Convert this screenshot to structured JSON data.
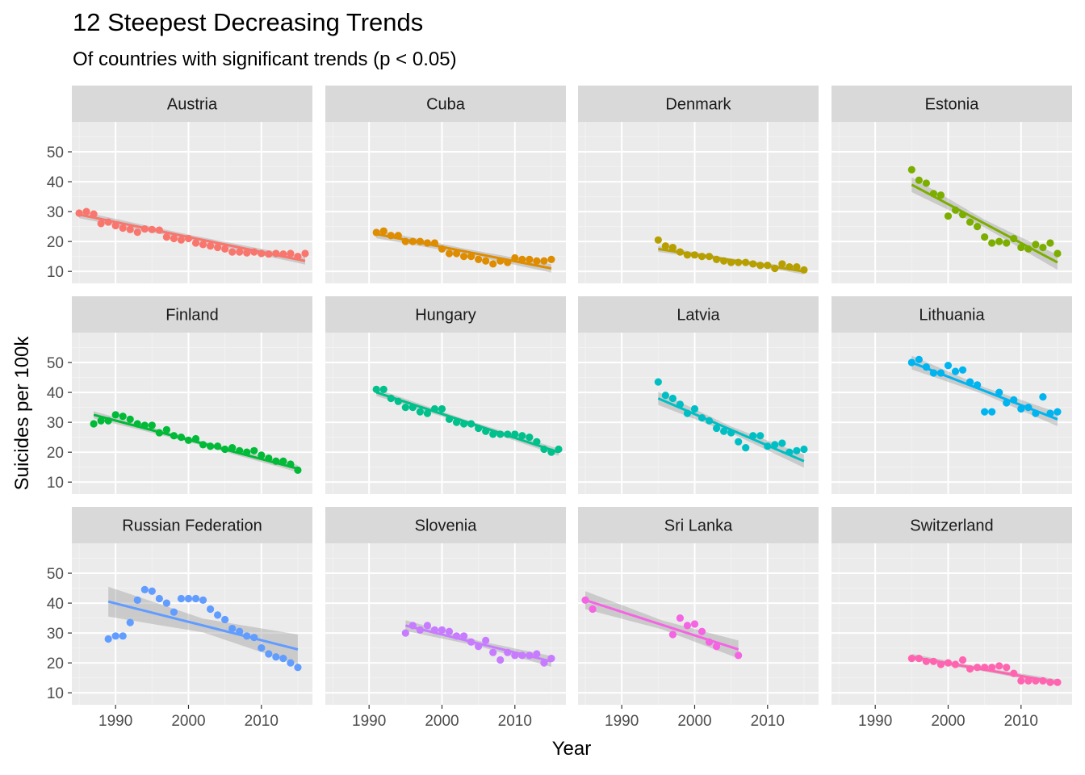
{
  "chart_data": {
    "type": "scatter",
    "title": "12 Steepest Decreasing Trends",
    "subtitle": "Of countries with significant trends (p < 0.05)",
    "xlabel": "Year",
    "ylabel": "Suicides per 100k",
    "xlim": [
      1984,
      2017
    ],
    "ylim": [
      6,
      60
    ],
    "x_ticks": [
      1990,
      2000,
      2010
    ],
    "y_ticks": [
      10,
      20,
      30,
      40,
      50
    ],
    "grid": true,
    "facets": [
      {
        "name": "Austria",
        "color": "#F8766D",
        "x": [
          1985,
          1986,
          1987,
          1988,
          1989,
          1990,
          1991,
          1992,
          1993,
          1994,
          1995,
          1996,
          1997,
          1998,
          1999,
          2000,
          2001,
          2002,
          2003,
          2004,
          2005,
          2006,
          2007,
          2008,
          2009,
          2010,
          2011,
          2012,
          2013,
          2014,
          2015,
          2016
        ],
        "y": [
          29.5,
          30,
          29.2,
          26,
          26.5,
          25.3,
          24.5,
          24,
          23.1,
          24.2,
          24,
          23.8,
          21.5,
          21,
          20.5,
          21,
          19.5,
          19,
          18.5,
          18,
          17.5,
          16.5,
          16.5,
          16.2,
          16.5,
          16,
          15.8,
          16,
          15.8,
          16,
          15,
          16
        ],
        "fit": [
          29.0,
          13.5
        ],
        "ci": [
          1.2,
          0.8,
          1.2
        ]
      },
      {
        "name": "Cuba",
        "color": "#DE8C00",
        "x": [
          1991,
          1992,
          1993,
          1994,
          1995,
          1996,
          1997,
          1998,
          1999,
          2000,
          2001,
          2002,
          2003,
          2004,
          2005,
          2006,
          2007,
          2008,
          2009,
          2010,
          2011,
          2012,
          2013,
          2014,
          2015
        ],
        "y": [
          23,
          23.5,
          22,
          22,
          20,
          20,
          20,
          19.5,
          19.5,
          17.5,
          16,
          16,
          15,
          15,
          14,
          13.5,
          12.5,
          13.5,
          13,
          14.5,
          14,
          14,
          13.5,
          13.5,
          14
        ],
        "fit": [
          22.5,
          11.0
        ],
        "ci": [
          1.4,
          0.9,
          1.4
        ]
      },
      {
        "name": "Denmark",
        "color": "#B79F00",
        "x": [
          1995,
          1996,
          1997,
          1998,
          1999,
          2000,
          2001,
          2002,
          2003,
          2004,
          2005,
          2006,
          2007,
          2008,
          2009,
          2010,
          2011,
          2012,
          2013,
          2014,
          2015
        ],
        "y": [
          20.5,
          18.5,
          18,
          16.5,
          15.5,
          15.5,
          15,
          15,
          14,
          13.5,
          13,
          13,
          13,
          12.5,
          12,
          12,
          11,
          12.5,
          11.5,
          11.5,
          10.5
        ],
        "fit": [
          17.5,
          10.0
        ],
        "ci": [
          1.0,
          0.6,
          1.0
        ]
      },
      {
        "name": "Estonia",
        "color": "#7CAE00",
        "x": [
          1995,
          1996,
          1997,
          1998,
          1999,
          2000,
          2001,
          2002,
          2003,
          2004,
          2005,
          2006,
          2007,
          2008,
          2009,
          2010,
          2011,
          2012,
          2013,
          2014,
          2015
        ],
        "y": [
          44,
          40.5,
          39.5,
          36,
          35.5,
          28.5,
          30.5,
          29,
          26.5,
          25,
          21.5,
          19.5,
          20,
          19.5,
          21,
          18,
          17.5,
          19,
          18,
          19.5,
          16
        ],
        "fit": [
          39.0,
          13.0
        ],
        "ci": [
          2.5,
          1.3,
          2.5
        ]
      },
      {
        "name": "Finland",
        "color": "#00BA38",
        "x": [
          1987,
          1988,
          1989,
          1990,
          1991,
          1992,
          1993,
          1994,
          1995,
          1996,
          1997,
          1998,
          1999,
          2000,
          2001,
          2002,
          2003,
          2004,
          2005,
          2006,
          2007,
          2008,
          2009,
          2010,
          2011,
          2012,
          2013,
          2014,
          2015
        ],
        "y": [
          29.5,
          30.5,
          30.5,
          32.5,
          32,
          31,
          29.5,
          29,
          29,
          26.5,
          27.5,
          25.5,
          25,
          24,
          24.5,
          22.5,
          22,
          22,
          21,
          21.5,
          20.5,
          20,
          20.5,
          19,
          18,
          17,
          17,
          16,
          14
        ],
        "fit": [
          32.5,
          14.5
        ],
        "ci": [
          1.2,
          0.7,
          1.2
        ]
      },
      {
        "name": "Hungary",
        "color": "#00C08B",
        "x": [
          1991,
          1992,
          1993,
          1994,
          1995,
          1996,
          1997,
          1998,
          1999,
          2000,
          2001,
          2002,
          2003,
          2004,
          2005,
          2006,
          2007,
          2008,
          2009,
          2010,
          2011,
          2012,
          2013,
          2014,
          2015,
          2016
        ],
        "y": [
          41,
          41,
          38,
          37,
          35,
          35,
          33.5,
          33,
          34.5,
          34.5,
          31,
          30,
          29.5,
          29.5,
          28,
          27,
          26,
          26,
          26,
          26,
          25.5,
          25,
          23.5,
          21,
          20,
          21
        ],
        "fit": [
          40.0,
          20.0
        ],
        "ci": [
          1.2,
          0.7,
          1.2
        ]
      },
      {
        "name": "Latvia",
        "color": "#00BFC4",
        "x": [
          1995,
          1996,
          1997,
          1998,
          1999,
          2000,
          2001,
          2002,
          2003,
          2004,
          2005,
          2006,
          2007,
          2008,
          2009,
          2010,
          2011,
          2012,
          2013,
          2014,
          2015
        ],
        "y": [
          43.5,
          39,
          38,
          36,
          33,
          34.5,
          31.5,
          30.5,
          28,
          27,
          26.5,
          23.5,
          21.5,
          25.5,
          25.5,
          22,
          22.5,
          23,
          20,
          20.5,
          21
        ],
        "fit": [
          38.0,
          17.0
        ],
        "ci": [
          2.2,
          1.1,
          2.2
        ]
      },
      {
        "name": "Lithuania",
        "color": "#00B4F0",
        "x": [
          1995,
          1996,
          1997,
          1998,
          1999,
          2000,
          2001,
          2002,
          2003,
          2004,
          2005,
          2006,
          2007,
          2008,
          2009,
          2010,
          2011,
          2012,
          2013,
          2014,
          2015
        ],
        "y": [
          50,
          51,
          48.5,
          46.5,
          46.5,
          49,
          47,
          47.5,
          43.5,
          42.5,
          33.5,
          33.5,
          40,
          36.5,
          37.5,
          34.5,
          35,
          33,
          38.5,
          33,
          33.5
        ],
        "fit": [
          50.0,
          31.0
        ],
        "ci": [
          2.3,
          1.2,
          2.3
        ]
      },
      {
        "name": "Russian Federation",
        "color": "#619CFF",
        "x": [
          1989,
          1990,
          1991,
          1992,
          1993,
          1994,
          1995,
          1996,
          1997,
          1998,
          1999,
          2000,
          2001,
          2002,
          2003,
          2004,
          2005,
          2006,
          2007,
          2008,
          2009,
          2010,
          2011,
          2012,
          2013,
          2014,
          2015
        ],
        "y": [
          28,
          29,
          29,
          33.5,
          41,
          44.5,
          44,
          41.5,
          40,
          37,
          41.5,
          41.5,
          41.5,
          41,
          38,
          36,
          34.5,
          31.5,
          30.5,
          29,
          28.5,
          25,
          23,
          22,
          21.5,
          20,
          18.5
        ],
        "fit": [
          40.5,
          24.5
        ],
        "ci": [
          5.0,
          2.3,
          5.0
        ]
      },
      {
        "name": "Slovenia",
        "color": "#C77CFF",
        "x": [
          1995,
          1996,
          1997,
          1998,
          1999,
          2000,
          2001,
          2002,
          2003,
          2004,
          2005,
          2006,
          2007,
          2008,
          2009,
          2010,
          2011,
          2012,
          2013,
          2014,
          2015
        ],
        "y": [
          30,
          32.5,
          31,
          32.5,
          31,
          31,
          30.5,
          29,
          29,
          27,
          25.5,
          27.5,
          23.5,
          21,
          23.5,
          22.5,
          22.5,
          22.5,
          23,
          20,
          21.5
        ],
        "fit": [
          32.5,
          20.5
        ],
        "ci": [
          1.8,
          0.9,
          1.8
        ]
      },
      {
        "name": "Sri Lanka",
        "color": "#F564E3",
        "x": [
          1985,
          1986,
          1997,
          1998,
          1999,
          2000,
          2001,
          2002,
          2003,
          2006
        ],
        "y": [
          41,
          38,
          29.5,
          35,
          32.5,
          33,
          30.5,
          27,
          25.5,
          22.5
        ],
        "fit": [
          41.0,
          24.5
        ],
        "ci": [
          3.0,
          1.5,
          3.0
        ]
      },
      {
        "name": "Switzerland",
        "color": "#FF64B0",
        "x": [
          1995,
          1996,
          1997,
          1998,
          1999,
          2000,
          2001,
          2002,
          2003,
          2004,
          2005,
          2006,
          2007,
          2008,
          2009,
          2010,
          2011,
          2012,
          2013,
          2014,
          2015
        ],
        "y": [
          21.5,
          21.5,
          20.5,
          20.5,
          19.5,
          20,
          19.5,
          21,
          18,
          18.5,
          18.5,
          18.5,
          19,
          18.5,
          16.5,
          14,
          14,
          14,
          14,
          13.5,
          13.5
        ],
        "fit": [
          22.0,
          13.5
        ],
        "ci": [
          1.0,
          0.6,
          1.0
        ]
      }
    ]
  }
}
